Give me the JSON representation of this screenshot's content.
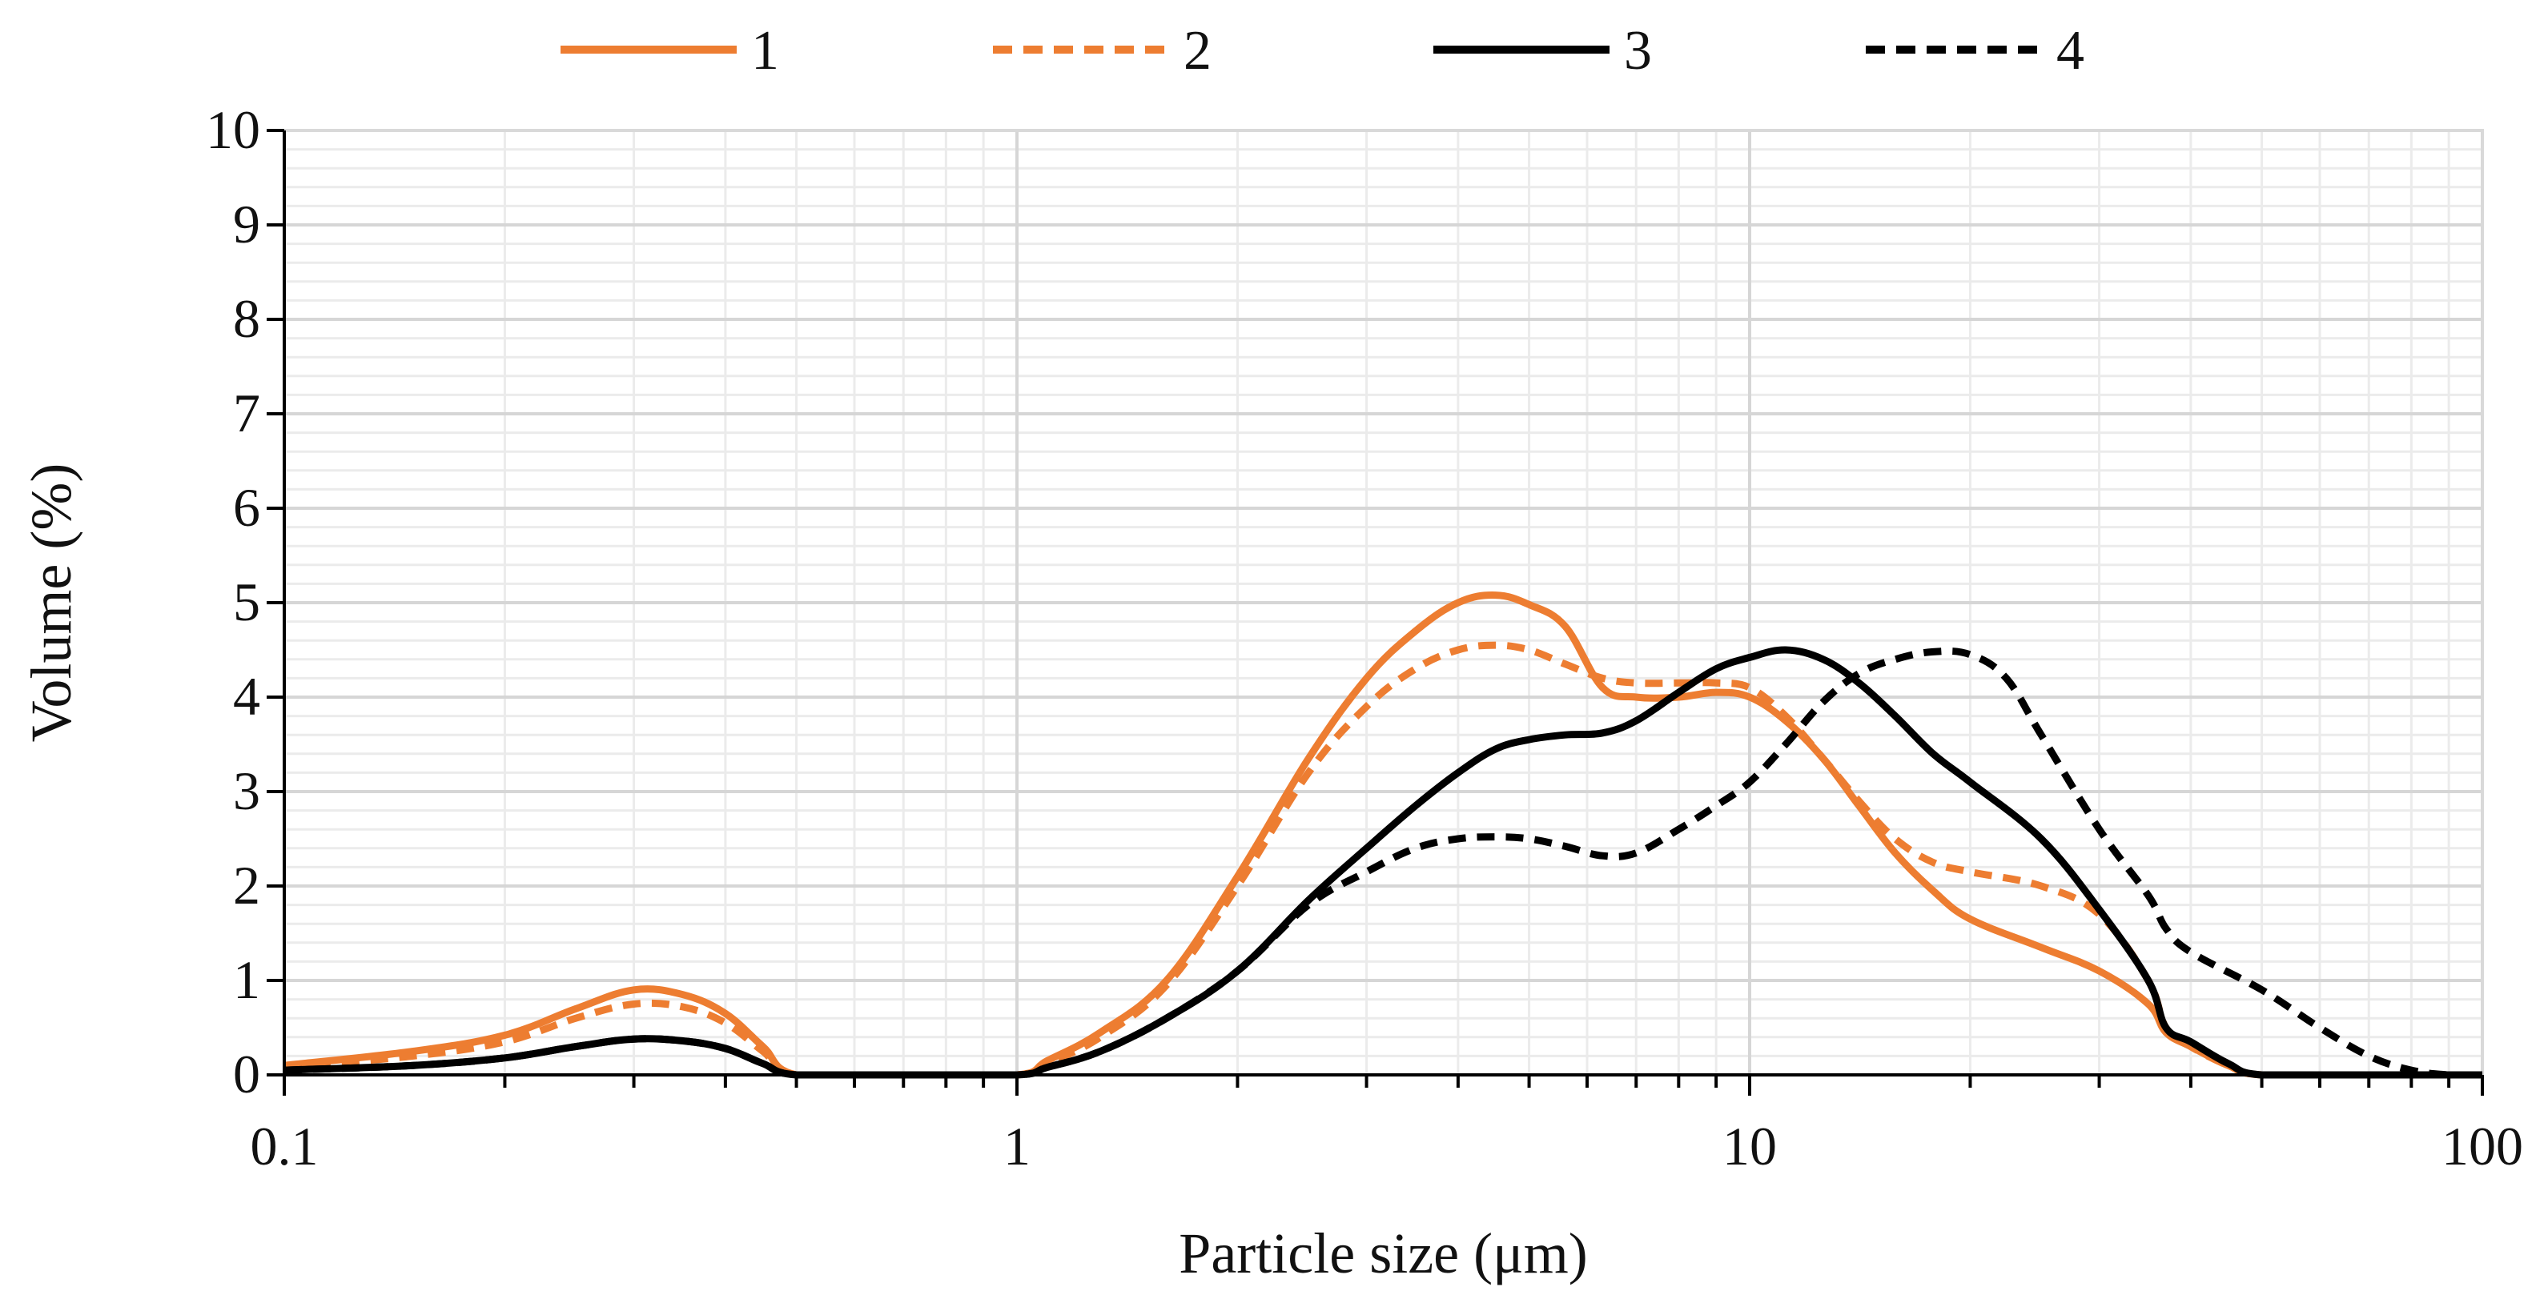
{
  "chart_data": {
    "type": "line",
    "title": "",
    "xlabel": "Particle size (μm)",
    "ylabel": "Volume (%)",
    "xscale": "log",
    "xlim": [
      0.1,
      100
    ],
    "ylim": [
      0,
      10
    ],
    "grid": true,
    "legend_position": "top",
    "x_ticks": [
      {
        "value": 0.1,
        "label": "0.1"
      },
      {
        "value": 1,
        "label": "1"
      },
      {
        "value": 10,
        "label": "10"
      },
      {
        "value": 100,
        "label": "100"
      }
    ],
    "y_ticks": [
      {
        "value": 0,
        "label": "0"
      },
      {
        "value": 1,
        "label": "1"
      },
      {
        "value": 2,
        "label": "2"
      },
      {
        "value": 3,
        "label": "3"
      },
      {
        "value": 4,
        "label": "4"
      },
      {
        "value": 5,
        "label": "5"
      },
      {
        "value": 6,
        "label": "6"
      },
      {
        "value": 7,
        "label": "7"
      },
      {
        "value": 8,
        "label": "8"
      },
      {
        "value": 9,
        "label": "9"
      },
      {
        "value": 10,
        "label": "10"
      }
    ],
    "series": [
      {
        "name": "1",
        "color": "#ED7D31",
        "dash": "solid",
        "points": [
          [
            0.1,
            0.1
          ],
          [
            0.15,
            0.25
          ],
          [
            0.2,
            0.42
          ],
          [
            0.25,
            0.7
          ],
          [
            0.3,
            0.9
          ],
          [
            0.35,
            0.85
          ],
          [
            0.4,
            0.65
          ],
          [
            0.45,
            0.3
          ],
          [
            0.5,
            0.0
          ],
          [
            0.7,
            0.0
          ],
          [
            1.0,
            0.0
          ],
          [
            1.1,
            0.15
          ],
          [
            1.3,
            0.45
          ],
          [
            1.6,
            1.0
          ],
          [
            2.0,
            2.1
          ],
          [
            2.5,
            3.35
          ],
          [
            3.0,
            4.2
          ],
          [
            3.5,
            4.7
          ],
          [
            4.0,
            5.0
          ],
          [
            4.5,
            5.08
          ],
          [
            5.0,
            4.98
          ],
          [
            5.6,
            4.75
          ],
          [
            6.3,
            4.1
          ],
          [
            7.0,
            4.0
          ],
          [
            8.0,
            4.0
          ],
          [
            9.0,
            4.05
          ],
          [
            10.0,
            4.0
          ],
          [
            11.2,
            3.75
          ],
          [
            12.6,
            3.35
          ],
          [
            14.1,
            2.85
          ],
          [
            15.8,
            2.35
          ],
          [
            17.8,
            1.95
          ],
          [
            20.0,
            1.65
          ],
          [
            25.0,
            1.35
          ],
          [
            30.0,
            1.1
          ],
          [
            35.0,
            0.75
          ],
          [
            37.0,
            0.45
          ],
          [
            40.0,
            0.3
          ],
          [
            45.0,
            0.1
          ],
          [
            50.0,
            0.0
          ],
          [
            70.0,
            0.0
          ],
          [
            100.0,
            0.0
          ]
        ]
      },
      {
        "name": "2",
        "color": "#ED7D31",
        "dash": "dashed",
        "points": [
          [
            0.1,
            0.08
          ],
          [
            0.15,
            0.2
          ],
          [
            0.2,
            0.35
          ],
          [
            0.25,
            0.6
          ],
          [
            0.3,
            0.75
          ],
          [
            0.35,
            0.72
          ],
          [
            0.4,
            0.55
          ],
          [
            0.45,
            0.25
          ],
          [
            0.5,
            0.0
          ],
          [
            0.7,
            0.0
          ],
          [
            1.0,
            0.0
          ],
          [
            1.1,
            0.12
          ],
          [
            1.3,
            0.4
          ],
          [
            1.6,
            0.95
          ],
          [
            2.0,
            2.0
          ],
          [
            2.5,
            3.2
          ],
          [
            3.0,
            3.9
          ],
          [
            3.5,
            4.3
          ],
          [
            4.0,
            4.5
          ],
          [
            4.5,
            4.55
          ],
          [
            5.0,
            4.5
          ],
          [
            5.6,
            4.35
          ],
          [
            6.3,
            4.2
          ],
          [
            7.0,
            4.15
          ],
          [
            8.0,
            4.15
          ],
          [
            9.0,
            4.15
          ],
          [
            10.0,
            4.1
          ],
          [
            11.2,
            3.8
          ],
          [
            12.6,
            3.35
          ],
          [
            14.1,
            2.9
          ],
          [
            15.8,
            2.5
          ],
          [
            17.8,
            2.25
          ],
          [
            20.0,
            2.15
          ],
          [
            25.0,
            2.0
          ],
          [
            30.0,
            1.7
          ],
          [
            35.0,
            1.0
          ],
          [
            37.0,
            0.5
          ],
          [
            40.0,
            0.3
          ],
          [
            45.0,
            0.1
          ],
          [
            50.0,
            0.0
          ],
          [
            70.0,
            0.0
          ],
          [
            100.0,
            0.0
          ]
        ]
      },
      {
        "name": "3",
        "color": "#000000",
        "dash": "solid",
        "points": [
          [
            0.1,
            0.05
          ],
          [
            0.15,
            0.1
          ],
          [
            0.2,
            0.18
          ],
          [
            0.25,
            0.3
          ],
          [
            0.3,
            0.38
          ],
          [
            0.35,
            0.36
          ],
          [
            0.4,
            0.28
          ],
          [
            0.45,
            0.12
          ],
          [
            0.5,
            0.0
          ],
          [
            0.7,
            0.0
          ],
          [
            1.0,
            0.0
          ],
          [
            1.1,
            0.08
          ],
          [
            1.3,
            0.25
          ],
          [
            1.6,
            0.6
          ],
          [
            2.0,
            1.1
          ],
          [
            2.5,
            1.85
          ],
          [
            3.0,
            2.4
          ],
          [
            3.5,
            2.85
          ],
          [
            4.0,
            3.2
          ],
          [
            4.5,
            3.45
          ],
          [
            5.0,
            3.55
          ],
          [
            5.6,
            3.6
          ],
          [
            6.3,
            3.62
          ],
          [
            7.0,
            3.75
          ],
          [
            8.0,
            4.05
          ],
          [
            9.0,
            4.3
          ],
          [
            10.0,
            4.42
          ],
          [
            11.2,
            4.5
          ],
          [
            12.6,
            4.4
          ],
          [
            14.1,
            4.15
          ],
          [
            15.8,
            3.8
          ],
          [
            17.8,
            3.4
          ],
          [
            20.0,
            3.1
          ],
          [
            25.0,
            2.5
          ],
          [
            30.0,
            1.75
          ],
          [
            35.0,
            1.0
          ],
          [
            37.0,
            0.5
          ],
          [
            40.0,
            0.35
          ],
          [
            45.0,
            0.12
          ],
          [
            50.0,
            0.0
          ],
          [
            70.0,
            0.0
          ],
          [
            100.0,
            0.0
          ]
        ]
      },
      {
        "name": "4",
        "color": "#000000",
        "dash": "dashed",
        "points": [
          [
            0.1,
            0.05
          ],
          [
            0.15,
            0.1
          ],
          [
            0.2,
            0.18
          ],
          [
            0.25,
            0.3
          ],
          [
            0.3,
            0.38
          ],
          [
            0.35,
            0.36
          ],
          [
            0.4,
            0.28
          ],
          [
            0.45,
            0.12
          ],
          [
            0.5,
            0.0
          ],
          [
            0.7,
            0.0
          ],
          [
            1.0,
            0.0
          ],
          [
            1.1,
            0.08
          ],
          [
            1.3,
            0.25
          ],
          [
            1.6,
            0.6
          ],
          [
            2.0,
            1.1
          ],
          [
            2.5,
            1.8
          ],
          [
            3.0,
            2.15
          ],
          [
            3.5,
            2.4
          ],
          [
            4.0,
            2.5
          ],
          [
            4.5,
            2.52
          ],
          [
            5.0,
            2.5
          ],
          [
            5.6,
            2.42
          ],
          [
            6.3,
            2.32
          ],
          [
            7.0,
            2.35
          ],
          [
            8.0,
            2.6
          ],
          [
            9.0,
            2.85
          ],
          [
            10.0,
            3.1
          ],
          [
            11.2,
            3.5
          ],
          [
            12.6,
            3.95
          ],
          [
            14.1,
            4.25
          ],
          [
            15.8,
            4.4
          ],
          [
            17.8,
            4.48
          ],
          [
            20.0,
            4.45
          ],
          [
            22.4,
            4.2
          ],
          [
            25.0,
            3.6
          ],
          [
            30.0,
            2.6
          ],
          [
            35.0,
            1.9
          ],
          [
            37.0,
            1.55
          ],
          [
            40.0,
            1.3
          ],
          [
            50.0,
            0.9
          ],
          [
            60.0,
            0.5
          ],
          [
            70.0,
            0.2
          ],
          [
            80.0,
            0.05
          ],
          [
            90.0,
            0.0
          ],
          [
            100.0,
            0.0
          ]
        ]
      }
    ]
  }
}
